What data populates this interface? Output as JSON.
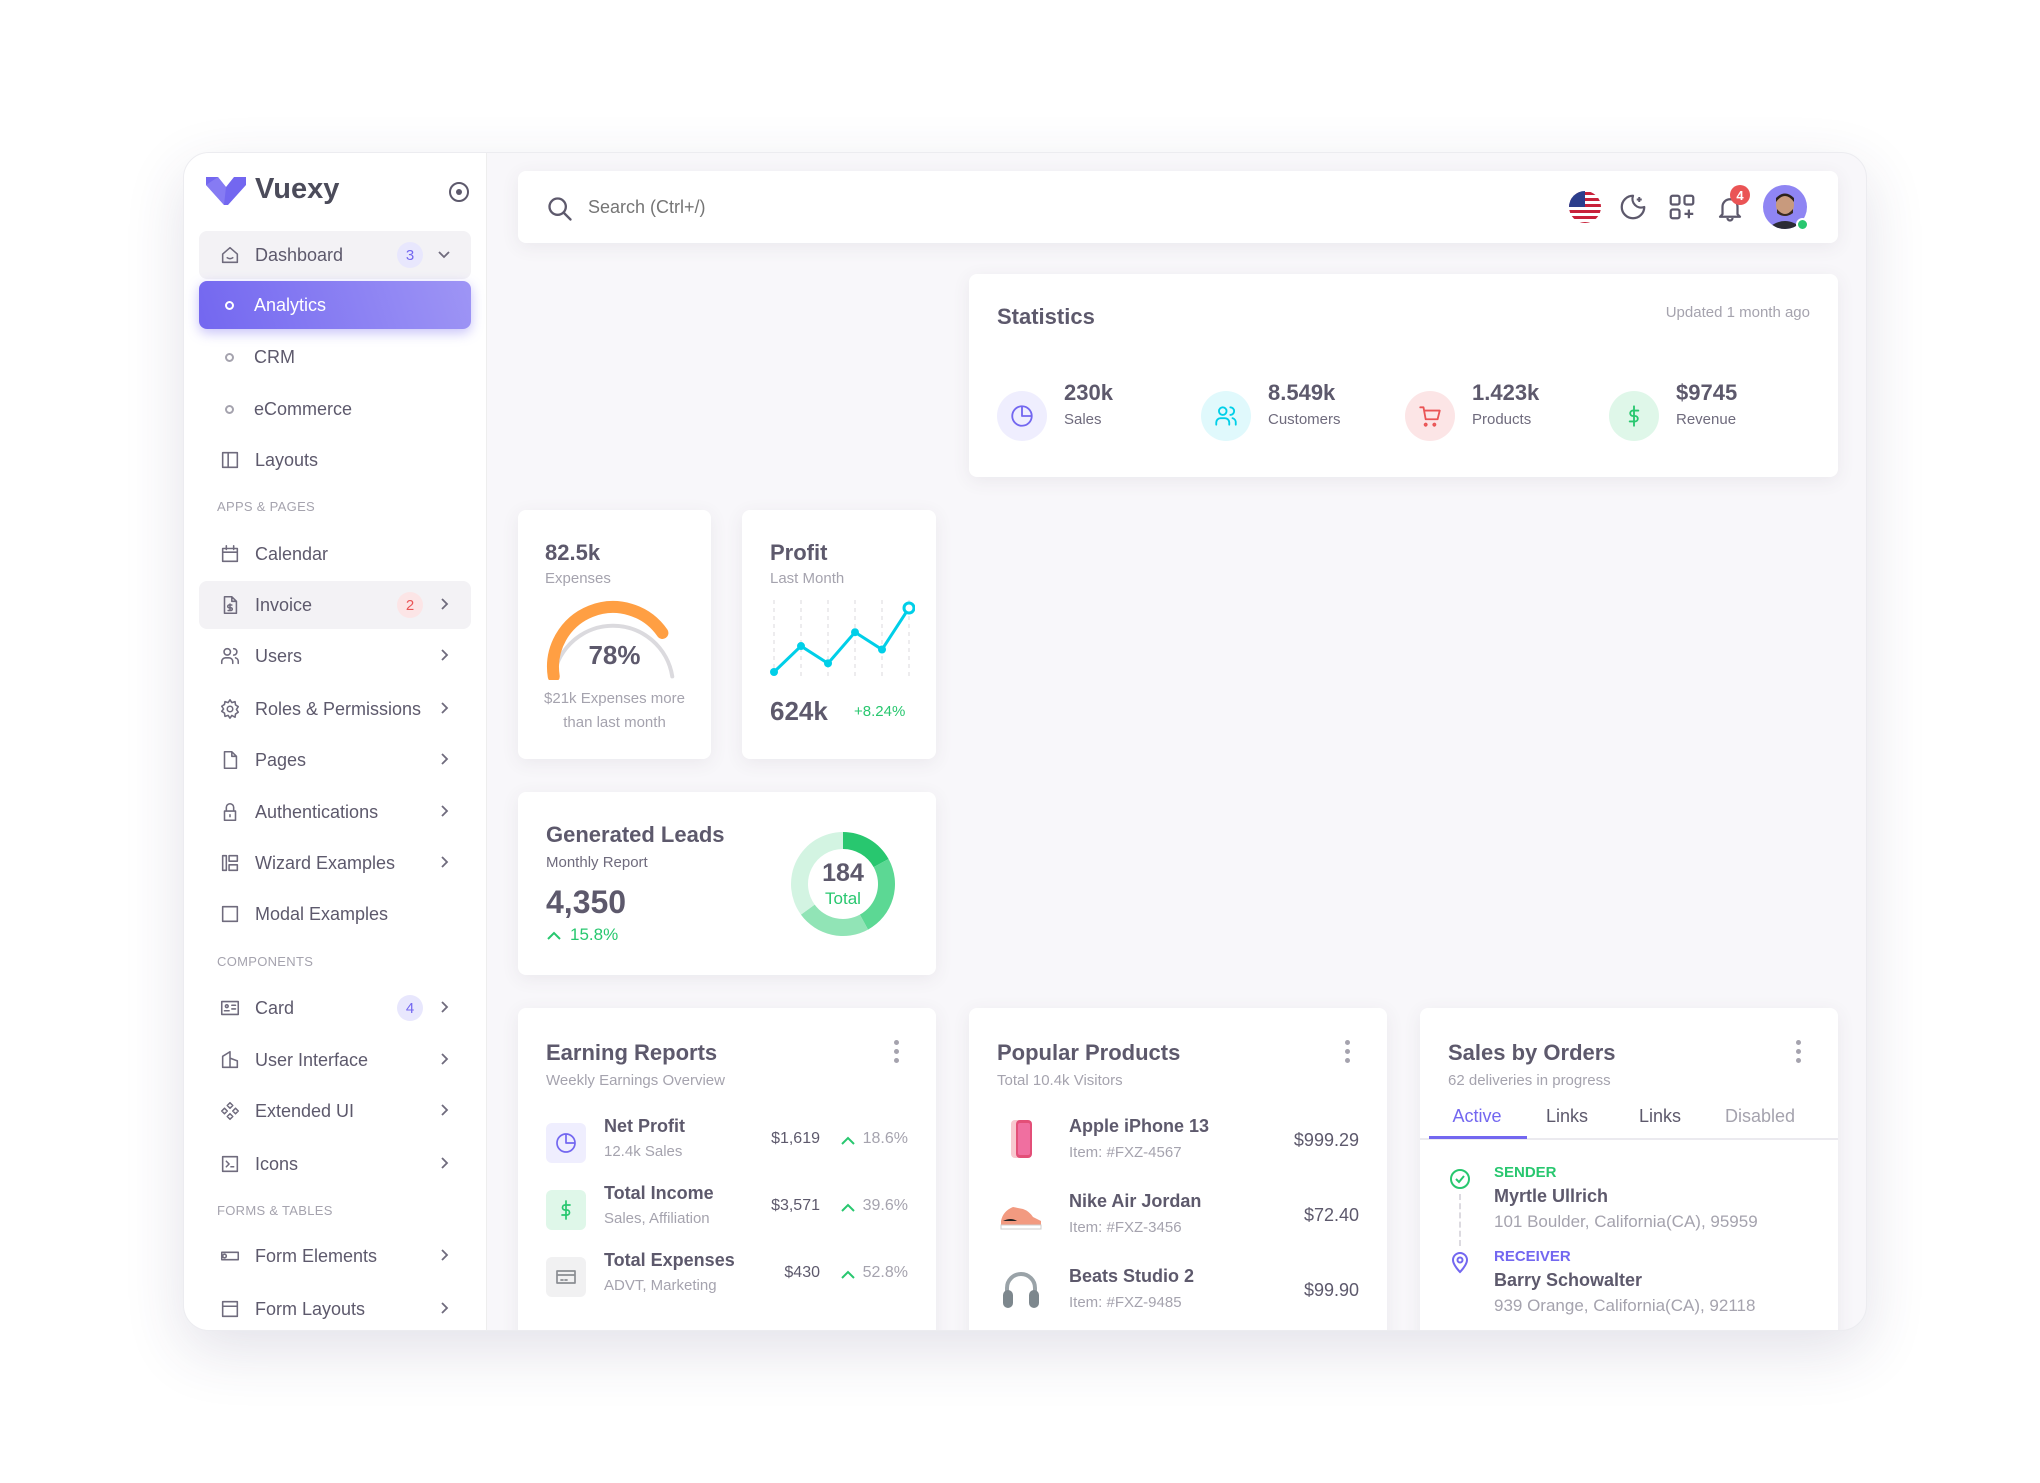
{
  "brand": {
    "name": "Vuexy",
    "color": "#7367f0"
  },
  "sidebar": {
    "items": [
      {
        "label": "Dashboard",
        "icon": "home-icon",
        "badge": "3",
        "chevron": "down",
        "state": "open"
      },
      {
        "label": "Analytics",
        "sub": true,
        "state": "active"
      },
      {
        "label": "CRM",
        "sub": true
      },
      {
        "label": "eCommerce",
        "sub": true
      },
      {
        "label": "Layouts",
        "icon": "layout-icon"
      },
      {
        "section": "APPS & PAGES"
      },
      {
        "label": "Calendar",
        "icon": "calendar-icon"
      },
      {
        "label": "Invoice",
        "icon": "file-dollar-icon",
        "badge": "2",
        "badge_color": "red",
        "chevron": "right",
        "state": "open"
      },
      {
        "label": "Users",
        "icon": "users-icon",
        "chevron": "right"
      },
      {
        "label": "Roles & Permissions",
        "icon": "settings-icon",
        "chevron": "right"
      },
      {
        "label": "Pages",
        "icon": "file-icon",
        "chevron": "right"
      },
      {
        "label": "Authentications",
        "icon": "lock-icon",
        "chevron": "right"
      },
      {
        "label": "Wizard Examples",
        "icon": "wizard-icon",
        "chevron": "right"
      },
      {
        "label": "Modal Examples",
        "icon": "square-icon"
      },
      {
        "section": "COMPONENTS"
      },
      {
        "label": "Card",
        "icon": "id-card-icon",
        "badge": "4",
        "chevron": "right"
      },
      {
        "label": "User Interface",
        "icon": "ui-icon",
        "chevron": "right"
      },
      {
        "label": "Extended UI",
        "icon": "components-icon",
        "chevron": "right"
      },
      {
        "label": "Icons",
        "icon": "brand-icon",
        "chevron": "right"
      },
      {
        "section": "FORMS & TABLES"
      },
      {
        "label": "Form Elements",
        "icon": "toggle-icon",
        "chevron": "right"
      },
      {
        "label": "Form Layouts",
        "icon": "layout-navbar-icon",
        "chevron": "right"
      }
    ]
  },
  "header": {
    "search_placeholder": "Search (Ctrl+/)",
    "notifications": "4",
    "language": "en-US flag",
    "online": true
  },
  "statistics": {
    "title": "Statistics",
    "updated": "Updated 1 month ago",
    "items": [
      {
        "value": "230k",
        "label": "Sales",
        "icon": "chart-pie-icon",
        "color": "#7367f0",
        "bg": "#efeefe"
      },
      {
        "value": "8.549k",
        "label": "Customers",
        "icon": "users-icon",
        "color": "#00cfe8",
        "bg": "#e0f9fc"
      },
      {
        "value": "1.423k",
        "label": "Products",
        "icon": "cart-icon",
        "color": "#ea5455",
        "bg": "#fce5e6"
      },
      {
        "value": "$9745",
        "label": "Revenue",
        "icon": "dollar-icon",
        "color": "#28c76f",
        "bg": "#dff7e9"
      }
    ]
  },
  "expenses": {
    "value": "82.5k",
    "label": "Expenses",
    "percent_text": "78%",
    "percent": 78,
    "caption1": "$21k Expenses more",
    "caption2": "than last month",
    "color": "#ff9f43"
  },
  "profit": {
    "title": "Profit",
    "subtitle": "Last Month",
    "value": "624k",
    "change": "+8.24%",
    "color": "#00cfe8",
    "sparkline": [
      5,
      20,
      10,
      28,
      18,
      42
    ]
  },
  "leads": {
    "title": "Generated Leads",
    "subtitle": "Monthly Report",
    "value": "4,350",
    "change": "15.8%",
    "total": "184",
    "total_label": "Total",
    "segments": [
      17,
      25,
      23,
      35
    ],
    "colors": [
      "#28c76f",
      "#5cd894",
      "#91e4b6",
      "#d3f4e2"
    ]
  },
  "earning": {
    "title": "Earning Reports",
    "subtitle": "Weekly Earnings Overview",
    "rows": [
      {
        "name": "Net Profit",
        "sub": "12.4k Sales",
        "amount": "$1,619",
        "pct": "18.6%",
        "icon": "chart-pie-icon",
        "color": "#7367f0",
        "bg": "#efeefe"
      },
      {
        "name": "Total Income",
        "sub": "Sales, Affiliation",
        "amount": "$3,571",
        "pct": "39.6%",
        "icon": "dollar-icon",
        "color": "#28c76f",
        "bg": "#dff7e9"
      },
      {
        "name": "Total Expenses",
        "sub": "ADVT, Marketing",
        "amount": "$430",
        "pct": "52.8%",
        "icon": "credit-card-icon",
        "color": "#8a8d93",
        "bg": "#f1f1f2"
      }
    ]
  },
  "popular": {
    "title": "Popular Products",
    "subtitle": "Total 10.4k Visitors",
    "rows": [
      {
        "name": "Apple iPhone 13",
        "item": "Item: #FXZ-4567",
        "price": "$999.29",
        "image": "iphone"
      },
      {
        "name": "Nike Air Jordan",
        "item": "Item: #FXZ-3456",
        "price": "$72.40",
        "image": "shoe"
      },
      {
        "name": "Beats Studio 2",
        "item": "Item: #FXZ-9485",
        "price": "$99.90",
        "image": "headphones"
      }
    ]
  },
  "orders": {
    "title": "Sales by Orders",
    "subtitle": "62 deliveries in progress",
    "tabs": [
      "Active",
      "Links",
      "Links",
      "Disabled"
    ],
    "sender": {
      "label": "SENDER",
      "name": "Myrtle Ullrich",
      "address": "101 Boulder, California(CA), 95959"
    },
    "receiver": {
      "label": "RECEIVER",
      "name": "Barry Schowalter",
      "address": "939 Orange, California(CA), 92118"
    }
  }
}
